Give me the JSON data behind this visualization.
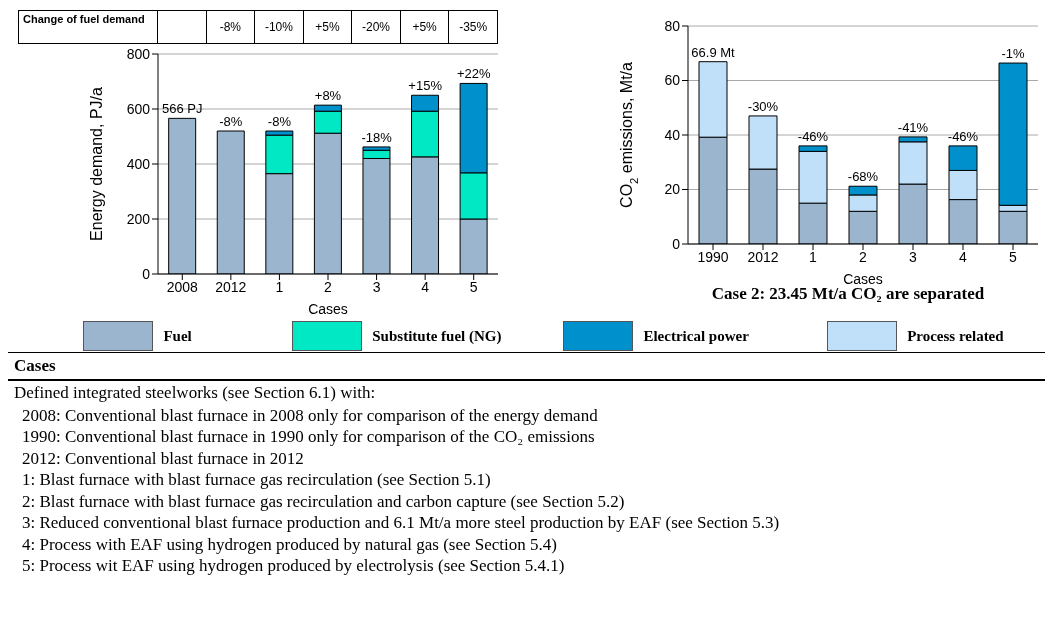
{
  "chart_data": [
    {
      "type": "bar",
      "stacked": true,
      "xlabel": "Cases",
      "ylabel": "Energy demand, PJ/a",
      "categories": [
        "2008",
        "2012",
        "1",
        "2",
        "3",
        "4",
        "5"
      ],
      "series": [
        {
          "name": "Fuel",
          "color": "#9bb5cf",
          "values": [
            566,
            520,
            365,
            512,
            420,
            426,
            200
          ]
        },
        {
          "name": "Substitute fuel (NG)",
          "color": "#00e8c4",
          "values": [
            null,
            null,
            140,
            80,
            30,
            166,
            168
          ]
        },
        {
          "name": "Electrical power",
          "color": "#0090cc",
          "values": [
            null,
            null,
            15,
            22,
            12,
            58,
            325
          ]
        }
      ],
      "ylim": [
        0,
        800
      ],
      "yticks": [
        0,
        200,
        400,
        600,
        800
      ],
      "grid": "y",
      "legend": "bottom",
      "annotations": [
        "Change of fuel demand",
        "-8%",
        "-10%",
        "+5%",
        "-20%",
        "+5%",
        "-35%",
        {
          "text": "566 PJ",
          "x": "2008",
          "y": 566
        },
        {
          "text": "-8%",
          "x": "2012",
          "y": 520
        },
        {
          "text": "-8%",
          "x": "1",
          "y": 520
        },
        {
          "text": "+8%",
          "x": "2",
          "y": 614
        },
        {
          "text": "-18%",
          "x": "3",
          "y": 462
        },
        {
          "text": "+15%",
          "x": "4",
          "y": 650
        },
        {
          "text": "+22%",
          "x": "5",
          "y": 693
        }
      ]
    },
    {
      "type": "bar",
      "stacked": true,
      "xlabel": "Cases",
      "ylabel": "CO$_{2}$ emissions, Mt/a",
      "categories": [
        "1990",
        "2012",
        "1",
        "2",
        "3",
        "4",
        "5"
      ],
      "series": [
        {
          "color": "#9bb5cf",
          "values": [
            39.2,
            27.5,
            15,
            12,
            22,
            16.3,
            12
          ]
        },
        {
          "name": "Process related",
          "color": "#c0e0fa",
          "values": [
            27.7,
            19.5,
            19,
            6,
            15.5,
            10.7,
            2.2
          ]
        },
        {
          "color": "#0090cc",
          "values": [
            null,
            null,
            2,
            3.2,
            1.8,
            9,
            52.2
          ]
        }
      ],
      "ylim": [
        0,
        80
      ],
      "yticks": [
        0,
        20,
        40,
        60,
        80
      ],
      "grid": "y",
      "legend": "bottom",
      "annotations": [
        "Case 2: 23.45 Mt/a CO₂ are separated",
        {
          "text": "66.9 Mt",
          "x": "1990",
          "y": 66.9
        },
        {
          "text": "-30%",
          "x": "2012",
          "y": 47
        },
        {
          "text": "-46%",
          "x": "1",
          "y": 36
        },
        {
          "text": "-68%",
          "x": "2",
          "y": 21.2
        },
        {
          "text": "-41%",
          "x": "3",
          "y": 39.3
        },
        {
          "text": "-46%",
          "x": "4",
          "y": 36
        },
        {
          "text": "-1%",
          "x": "5",
          "y": 66.4
        }
      ]
    },
    {
      "type": "other",
      "title": "Cases",
      "annotations": [
        "Defined integrated steelworks (see Section 6.1) with:",
        "2008: Conventional blast furnace in 2008 only for comparison of the energy demand",
        "1990: Conventional blast furnace in 1990 only for comparison of the CO₂ emissions",
        "2012: Conventional blast furnace in 2012",
        "1: Blast furnace with blast furnace gas recirculation (see Section 5.1)",
        "2: Blast furnace with blast furnace gas recirculation and carbon capture (see Section 5.2)",
        "3: Reduced conventional blast furnace production and 6.1 Mt/a more steel production by EAF (see Section 5.3)",
        "4: Process with EAF using hydrogen produced by natural gas (see Section 5.4)",
        "5: Process wit EAF using hydrogen produced by electrolysis (see Section 5.4.1)"
      ]
    }
  ]
}
